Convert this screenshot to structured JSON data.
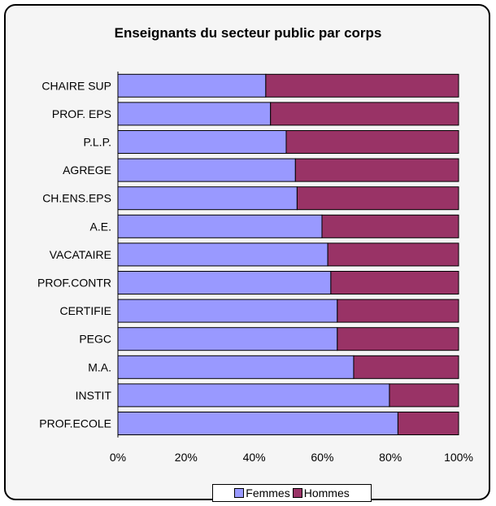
{
  "colors": {
    "femmes": "#9999ff",
    "hommes": "#993366",
    "plot_bg": "#f5f5f5"
  },
  "chart_data": {
    "type": "bar",
    "orientation": "horizontal",
    "stacked": "percent",
    "title": "Enseignants du secteur public par corps",
    "categories": [
      "CHAIRE SUP",
      "PROF. EPS",
      "P.L.P.",
      "AGREGE",
      "CH.ENS.EPS",
      "A.E.",
      "VACATAIRE",
      "PROF.CONTR",
      "CERTIFIE",
      "PEGC",
      "M.A.",
      "INSTIT",
      "PROF.ECOLE"
    ],
    "series": [
      {
        "name": "Femmes",
        "color": "#9999ff",
        "values": [
          43.4,
          44.8,
          49.4,
          52.1,
          52.6,
          59.9,
          61.6,
          62.5,
          64.4,
          64.4,
          69.2,
          79.7,
          82.2
        ]
      },
      {
        "name": "Hommes",
        "color": "#993366",
        "values": [
          56.6,
          55.2,
          50.6,
          47.9,
          47.4,
          40.1,
          38.4,
          37.5,
          35.6,
          35.6,
          30.8,
          20.3,
          17.8
        ]
      }
    ],
    "xlim": [
      0,
      100
    ],
    "ticks": [
      "0%",
      "20%",
      "40%",
      "60%",
      "80%",
      "100%"
    ],
    "grid": false,
    "legend_position": "bottom"
  }
}
